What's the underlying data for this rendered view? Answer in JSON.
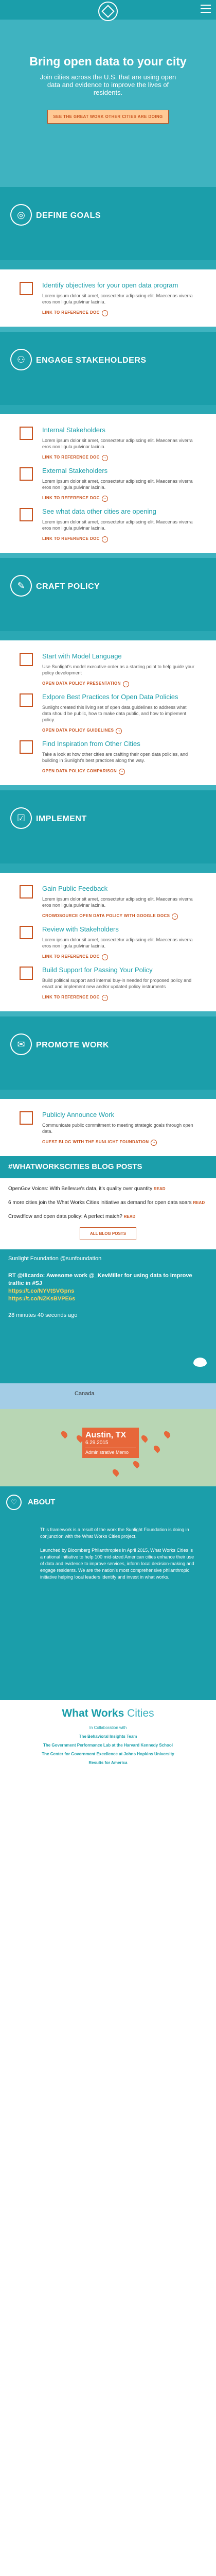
{
  "hero": {
    "title": "Bring open data to your city",
    "subtitle": "Join cities across the U.S. that are using open data and evidence to improve the lives of residents.",
    "cta": "SEE THE GREAT WORK OTHER CITIES ARE DOING"
  },
  "phases": [
    {
      "icon": "target-icon",
      "title": "DEFINE GOALS",
      "items": [
        {
          "title": "Identify objectives for your open data program",
          "body": "Lorem ipsum dolor sit amet, consectetur adipiscing elit. Maecenas viverra eros non ligula pulvinar lacinia.",
          "link": "LINK TO REFERENCE DOC"
        }
      ]
    },
    {
      "icon": "people-icon",
      "title": "ENGAGE STAKEHOLDERS",
      "items": [
        {
          "title": "Internal Stakeholders",
          "body": "Lorem ipsum dolor sit amet, consectetur adipiscing elit. Maecenas viverra eros non ligula pulvinar lacinia.",
          "link": "LINK TO REFERENCE DOC"
        },
        {
          "title": "External Stakeholders",
          "body": "Lorem ipsum dolor sit amet, consectetur adipiscing elit. Maecenas viverra eros non ligula pulvinar lacinia.",
          "link": "LINK TO REFERENCE DOC"
        },
        {
          "title": "See what data other cities are opening",
          "body": "Lorem ipsum dolor sit amet, consectetur adipiscing elit. Maecenas viverra eros non ligula pulvinar lacinia.",
          "link": "LINK TO REFERENCE DOC"
        }
      ]
    },
    {
      "icon": "pencil-icon",
      "title": "CRAFT POLICY",
      "items": [
        {
          "title": "Start with Model Language",
          "body": "Use Sunlight's model executive order as a starting point to help guide your policy development",
          "link": "OPEN DATA POLICY PRESENTATION"
        },
        {
          "title": "Exlpore Best Practices for Open Data Policies",
          "body": "Sunlight created this living set of open data guidelines to address what data should be public, how to make data public, and how to implement policy.",
          "link": "OPEN DATA POLICY GUIDELINES"
        },
        {
          "title": "Find Inspiration from Other Cities",
          "body": "Take a look at how other cities are crafting their open data policies, and building in Sunlight's best practices along the way.",
          "link": "OPEN DATA POLICY COMPARISON"
        }
      ]
    },
    {
      "icon": "checklist-icon",
      "title": "IMPLEMENT",
      "items": [
        {
          "title": "Gain Public Feedback",
          "body": "Lorem ipsum dolor sit amet, consectetur adipiscing elit. Maecenas viverra eros non ligula pulvinar lacinia.",
          "link": "CROWDSOURCE OPEN DATA POLICY WITH GOOGLE DOCS"
        },
        {
          "title": "Review with Stakeholders",
          "body": "Lorem ipsum dolor sit amet, consectetur adipiscing elit. Maecenas viverra eros non ligula pulvinar lacinia.",
          "link": "LINK TO REFERENCE DOC"
        },
        {
          "title": "Build Support for Passing Your Policy",
          "body": "Build political support and internal buy-in needed for proposed policy and enact and implement new and/or updated policy instruments",
          "link": "LINK TO REFERENCE DOC"
        }
      ]
    },
    {
      "icon": "megaphone-icon",
      "title": "PROMOTE WORK",
      "items": [
        {
          "title": "Publicly Announce Work",
          "body": "Communicate public commitment to meeting strategic goals through open data.",
          "link": "GUEST BLOG WITH THE SUNLIGHT FOUNDATION"
        }
      ]
    }
  ],
  "blog": {
    "heading": "#WHATWORKSCITIES BLOG POSTS",
    "posts": [
      {
        "text": "OpenGov Voices: With Bellevue's data, it's quality over quantity",
        "read": "READ"
      },
      {
        "text": "6 more cities join the What Works Cities initiative as demand for open data soars",
        "read": "READ"
      },
      {
        "text": "Crowdflow and open data policy: A perfect match?",
        "read": "READ"
      }
    ],
    "all_posts": "ALL BLOG POSTS"
  },
  "tweet": {
    "handle": "Sunlight Foundation @sunfoundation",
    "text": "RT @ilicardo: Awesome work @_KevMiller for using data to improve traffic in #SJ",
    "links": [
      "https://t.co/NYVtSVGpns",
      "https://t.co/NZKsBVPE6s"
    ],
    "time": "28 minutes 40 seconds ago"
  },
  "map": {
    "country_label": "Canada",
    "popup": {
      "city": "Austin, TX",
      "date": "6.29.2015",
      "type": "Administrative Memo"
    }
  },
  "about": {
    "title": "ABOUT",
    "paragraphs": [
      "This framework is a result of the work the Sunlight Foundation is doing in conjunction with the What Works Cities project.",
      "Launched by Bloomberg Philanthropies in April 2015, What Works Cities is a national initiative to help 100 mid-sized American cities enhance their use of data and evidence to improve services, inform local decision-making and engage residents. We are the nation's most comprehensive philanthropic initiative helping local leaders identify and invest in what works."
    ]
  },
  "footer": {
    "brand_main": "What Works",
    "brand_light": "Cities",
    "collab": "In Collaboration with",
    "partners": [
      "The Behavioral Insights Team",
      "The Government Performance Lab at the Harvard Kennedy School",
      "The Center for Government Excellence at Johns Hopkins University",
      "Results for America"
    ]
  }
}
